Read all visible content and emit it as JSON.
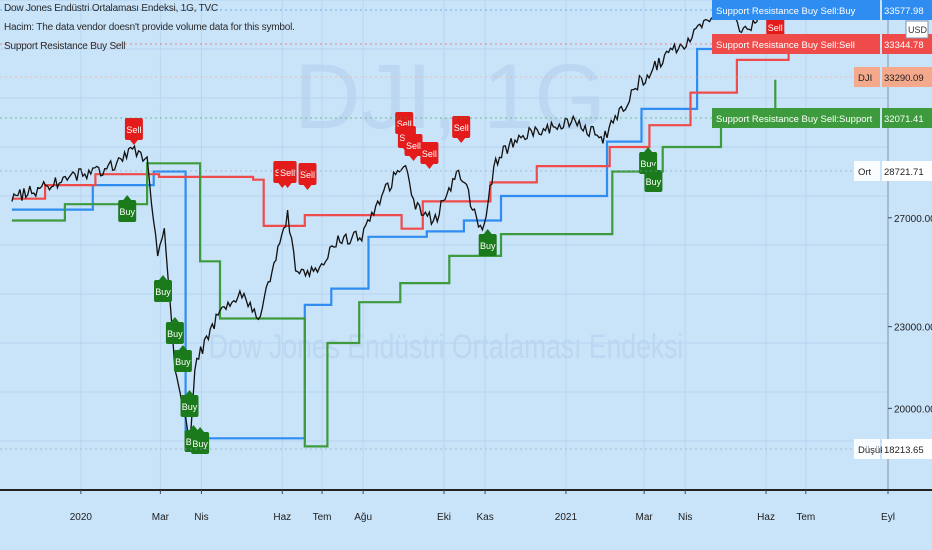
{
  "header": {
    "symbol_line": "Dow Jones Endüstri Ortalaması Endeksi, 1G, TVC",
    "volume_note": "Hacim: The data vendor doesn't provide volume data for this symbol.",
    "indicator_name": "Support Resistance Buy Sell"
  },
  "watermark": {
    "ticker": "DJI, 1G",
    "name": "Dow Jones Endüstri Ortalaması Endeksi"
  },
  "colors": {
    "background": "#c9e3f9",
    "price": "#111111",
    "buy_line": "#2f8cf0",
    "sell_line": "#ef4b4b",
    "support_line": "#3d9b3d",
    "buy_badge": "#1b7a1b",
    "sell_badge": "#e31b1b"
  },
  "price_scale": {
    "currency": "USD",
    "ticks": [
      "27000.00",
      "23000.00",
      "20000.00"
    ],
    "price_labels": [
      {
        "key": "buy",
        "text": "Support Resistance Buy Sell:Buy",
        "value": "33577.98",
        "color": "#2f8cf0"
      },
      {
        "key": "sell",
        "text": "Support Resistance Buy Sell:Sell",
        "value": "33344.78",
        "color": "#ef4b4b"
      },
      {
        "key": "dji",
        "text": "DJI",
        "value": "33290.09",
        "color": "#f4a98c"
      },
      {
        "key": "support",
        "text": "Support Resistance Buy Sell:Support",
        "value": "32071.41",
        "color": "#3d9b3d"
      },
      {
        "key": "avg",
        "text": "Ort",
        "value": "28721.71",
        "color": "#ffffff"
      },
      {
        "key": "low",
        "text": "Düşük",
        "value": "18213.65",
        "color": "#ffffff"
      }
    ]
  },
  "time_axis": {
    "labels": [
      "2020",
      "Mar",
      "Nis",
      "Haz",
      "Tem",
      "Ağu",
      "Eki",
      "Kas",
      "2021",
      "Mar",
      "Nis",
      "Haz",
      "Tem",
      "Eyl"
    ]
  },
  "signals": {
    "buy_label": "Buy",
    "sell_label": "Sell"
  },
  "chart_data": {
    "type": "line",
    "title": "Dow Jones Endüstri Ortalaması Endeksi, 1G, TVC",
    "x_range": [
      "2019-11",
      "2021-09"
    ],
    "ylim": [
      17000,
      35000
    ],
    "grid": true,
    "price_series": {
      "name": "DJI",
      "points": [
        [
          "2019-11-10",
          27700
        ],
        [
          "2019-12-01",
          28100
        ],
        [
          "2020-01-01",
          28600
        ],
        [
          "2020-01-25",
          28900
        ],
        [
          "2020-02-12",
          29500
        ],
        [
          "2020-02-20",
          29200
        ],
        [
          "2020-02-28",
          25500
        ],
        [
          "2020-03-04",
          26800
        ],
        [
          "2020-03-12",
          21500
        ],
        [
          "2020-03-16",
          20600
        ],
        [
          "2020-03-23",
          18600
        ],
        [
          "2020-03-27",
          21600
        ],
        [
          "2020-04-15",
          23500
        ],
        [
          "2020-04-30",
          24300
        ],
        [
          "2020-05-14",
          23200
        ],
        [
          "2020-06-05",
          27100
        ],
        [
          "2020-06-11",
          25100
        ],
        [
          "2020-06-26",
          25000
        ],
        [
          "2020-07-10",
          26100
        ],
        [
          "2020-07-31",
          26400
        ],
        [
          "2020-08-15",
          27800
        ],
        [
          "2020-09-02",
          29100
        ],
        [
          "2020-09-08",
          27600
        ],
        [
          "2020-09-23",
          26800
        ],
        [
          "2020-10-12",
          28800
        ],
        [
          "2020-10-30",
          26500
        ],
        [
          "2020-11-09",
          29100
        ],
        [
          "2020-11-25",
          30000
        ],
        [
          "2020-12-15",
          30200
        ],
        [
          "2021-01-05",
          30600
        ],
        [
          "2021-01-29",
          29900
        ],
        [
          "2021-02-24",
          31900
        ],
        [
          "2021-03-15",
          32800
        ],
        [
          "2021-04-15",
          34000
        ],
        [
          "2021-05-07",
          34800
        ],
        [
          "2021-05-12",
          33600
        ],
        [
          "2021-05-28",
          34500
        ],
        [
          "2021-06-10",
          34500
        ],
        [
          "2021-06-18",
          33290
        ]
      ]
    },
    "series": [
      {
        "name": "Support Resistance Buy Sell:Buy",
        "last": 33577.98,
        "values": [
          [
            "2019-11-10",
            27300
          ],
          [
            "2020-01-10",
            28200
          ],
          [
            "2020-02-25",
            28700
          ],
          [
            "2020-03-20",
            18900
          ],
          [
            "2020-06-18",
            18900
          ],
          [
            "2020-06-18",
            23800
          ],
          [
            "2020-07-08",
            24400
          ],
          [
            "2020-08-05",
            26300
          ],
          [
            "2020-09-18",
            26500
          ],
          [
            "2020-10-16",
            26900
          ],
          [
            "2020-11-13",
            27800
          ],
          [
            "2021-01-05",
            27800
          ],
          [
            "2021-02-01",
            29800
          ],
          [
            "2021-02-27",
            31000
          ],
          [
            "2021-04-10",
            33200
          ],
          [
            "2021-05-25",
            33700
          ],
          [
            "2021-06-18",
            33578
          ]
        ]
      },
      {
        "name": "Support Resistance Buy Sell:Sell",
        "last": 33344.78,
        "values": [
          [
            "2019-11-10",
            27700
          ],
          [
            "2019-12-05",
            28200
          ],
          [
            "2020-01-12",
            28600
          ],
          [
            "2020-02-29",
            28500
          ],
          [
            "2020-05-10",
            28400
          ],
          [
            "2020-05-18",
            26700
          ],
          [
            "2020-06-05",
            26700
          ],
          [
            "2020-06-18",
            27100
          ],
          [
            "2020-08-30",
            26600
          ],
          [
            "2020-09-15",
            27600
          ],
          [
            "2020-11-05",
            28300
          ],
          [
            "2020-12-10",
            28900
          ],
          [
            "2021-02-03",
            29600
          ],
          [
            "2021-03-05",
            30400
          ],
          [
            "2021-04-05",
            31600
          ],
          [
            "2021-05-10",
            32800
          ],
          [
            "2021-06-18",
            33345
          ]
        ]
      },
      {
        "name": "Support Resistance Buy Sell:Support",
        "last": 32071.41,
        "values": [
          [
            "2019-11-10",
            26900
          ],
          [
            "2019-12-20",
            27500
          ],
          [
            "2020-02-20",
            29000
          ],
          [
            "2020-03-31",
            25400
          ],
          [
            "2020-04-15",
            23300
          ],
          [
            "2020-06-18",
            23300
          ],
          [
            "2020-06-18",
            18600
          ],
          [
            "2020-07-05",
            22400
          ],
          [
            "2020-07-29",
            23900
          ],
          [
            "2020-08-29",
            24600
          ],
          [
            "2020-10-05",
            25600
          ],
          [
            "2020-11-13",
            26400
          ],
          [
            "2021-01-25",
            26400
          ],
          [
            "2021-02-05",
            28700
          ],
          [
            "2021-03-15",
            29600
          ],
          [
            "2021-04-28",
            30800
          ],
          [
            "2021-06-08",
            32071
          ]
        ]
      }
    ],
    "annotations": {
      "sell": [
        "2020-02-10",
        "2020-06-01",
        "2020-06-05",
        "2020-06-20",
        "2020-09-01",
        "2020-09-03",
        "2020-09-08",
        "2020-09-20",
        "2020-10-14",
        "2021-06-08"
      ],
      "buy": [
        "2020-02-05",
        "2020-03-03",
        "2020-03-12",
        "2020-03-18",
        "2020-03-23",
        "2020-03-26",
        "2020-03-31",
        "2020-11-03",
        "2021-03-04",
        "2021-03-08"
      ]
    }
  }
}
